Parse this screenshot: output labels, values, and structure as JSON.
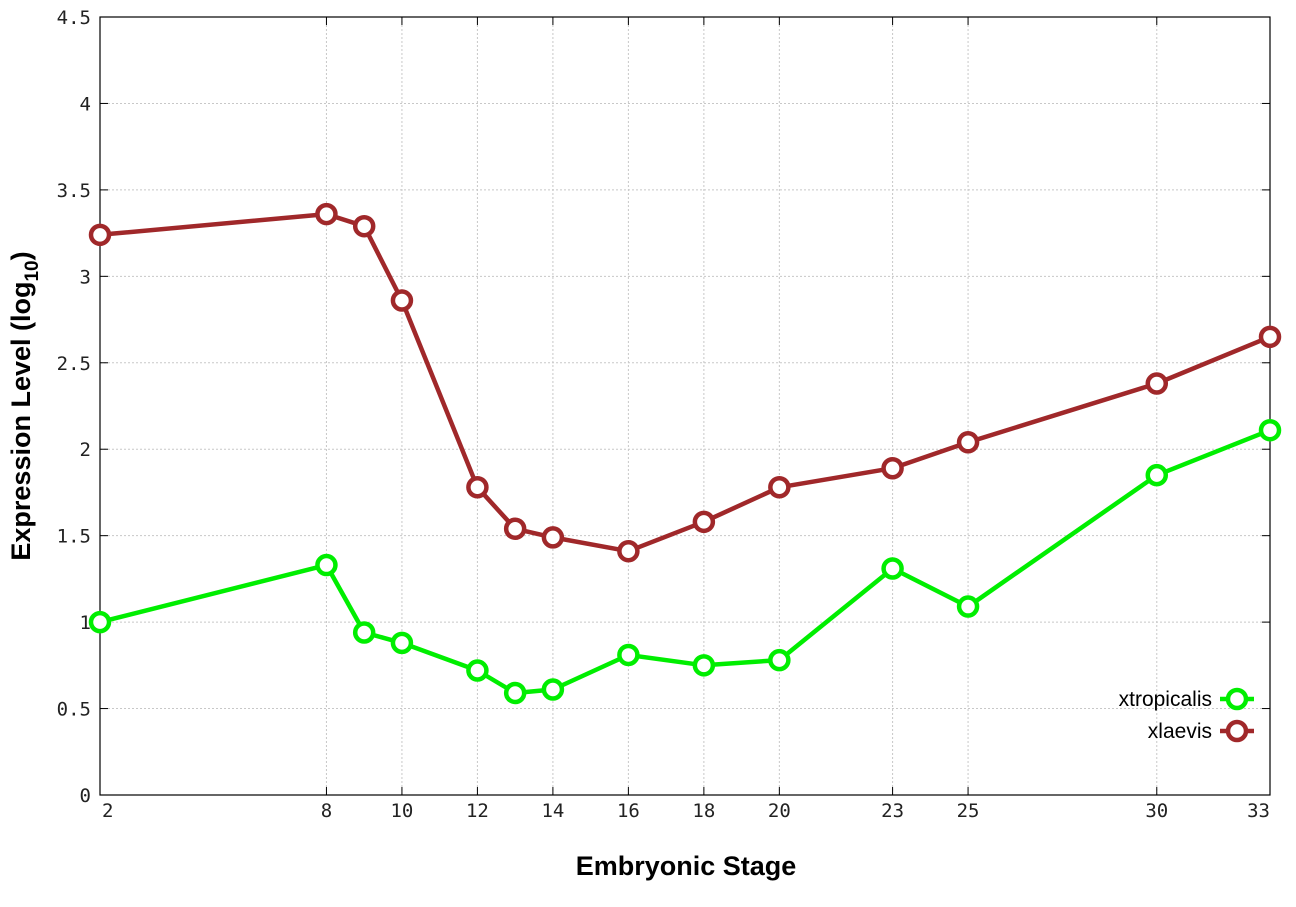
{
  "chart_data": {
    "type": "line",
    "xlabel": "Embryonic Stage",
    "ylabel": "Expression Level (log",
    "ylabel_subscript": "10",
    "ylabel_suffix": ")",
    "xlim": [
      2,
      33
    ],
    "ylim": [
      0,
      4.5
    ],
    "x_ticks": [
      2,
      8,
      10,
      12,
      14,
      16,
      18,
      20,
      23,
      25,
      30,
      33
    ],
    "y_ticks": [
      0,
      0.5,
      1,
      1.5,
      2,
      2.5,
      3,
      3.5,
      4,
      4.5
    ],
    "x_tick_labels": [
      "2",
      "8",
      "10",
      "12",
      "14",
      "16",
      "18",
      "20",
      "23",
      "25",
      "30",
      "33"
    ],
    "y_tick_labels": [
      "0",
      "0.5",
      "1",
      "1.5",
      "2",
      "2.5",
      "3",
      "3.5",
      "4",
      "4.5"
    ],
    "grid": true,
    "legend_position": "bottom-right",
    "x": [
      2,
      8,
      9,
      10,
      12,
      13,
      14,
      16,
      18,
      20,
      23,
      25,
      30,
      33
    ],
    "series": [
      {
        "name": "xtropicalis",
        "color": "#00ee00",
        "marker": "open-circle",
        "values": [
          1.0,
          1.33,
          0.94,
          0.88,
          0.72,
          0.59,
          0.61,
          0.81,
          0.75,
          0.78,
          1.31,
          1.09,
          1.85,
          2.11
        ]
      },
      {
        "name": "xlaevis",
        "color": "#a0282a",
        "marker": "open-circle",
        "values": [
          3.24,
          3.36,
          3.29,
          2.86,
          1.78,
          1.54,
          1.49,
          1.41,
          1.58,
          1.78,
          1.89,
          2.04,
          2.38,
          2.65
        ]
      }
    ]
  }
}
